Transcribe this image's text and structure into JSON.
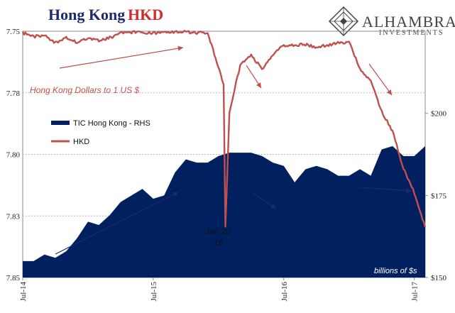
{
  "title_part1": "Hong Kong",
  "title_part2": "HKD",
  "logo": {
    "name": "ALHAMBRA",
    "sub": "INVESTMENTS"
  },
  "legend": {
    "tic_label": "TIC Hong Kong - RHS",
    "hkd_label": "HKD"
  },
  "annotations": {
    "hkd_note": "Hong Kong Dollars to 1 US $",
    "jan_line1": "Jan 20",
    "jan_line2": "'16",
    "units": "billions of $s"
  },
  "colors": {
    "hkd": "#c0504d",
    "tic": "#002060",
    "title_blue": "#1f2a6b",
    "title_red": "#d22b2b"
  },
  "chart_data": {
    "type": "line+area",
    "x_axis": {
      "ticks": [
        "Jul-14",
        "Jul-15",
        "Jul-16",
        "Jul-17"
      ],
      "range": [
        "2014-07",
        "2017-08"
      ]
    },
    "left_axis": {
      "inverted": true,
      "range": [
        7.75,
        7.85
      ],
      "ticks": [
        "7.75",
        "7.78",
        "7.80",
        "7.83",
        "7.85"
      ],
      "tick_values": [
        7.75,
        7.775,
        7.8,
        7.825,
        7.85
      ]
    },
    "right_axis": {
      "range": [
        150,
        225
      ],
      "ticks": [
        "$150",
        "$175",
        "$200"
      ],
      "tick_values": [
        150,
        175,
        200
      ]
    },
    "series": [
      {
        "name": "TIC Hong Kong - RHS",
        "axis": "right",
        "type": "area",
        "x": [
          "2014-07",
          "2014-08",
          "2014-09",
          "2014-10",
          "2014-11",
          "2014-12",
          "2015-01",
          "2015-02",
          "2015-03",
          "2015-04",
          "2015-05",
          "2015-06",
          "2015-07",
          "2015-08",
          "2015-09",
          "2015-10",
          "2015-11",
          "2015-12",
          "2016-01",
          "2016-02",
          "2016-03",
          "2016-04",
          "2016-05",
          "2016-06",
          "2016-07",
          "2016-08",
          "2016-09",
          "2016-10",
          "2016-11",
          "2016-12",
          "2017-01",
          "2017-02",
          "2017-03",
          "2017-04",
          "2017-05",
          "2017-06",
          "2017-07",
          "2017-08"
        ],
        "values": [
          155,
          155,
          157,
          156,
          158,
          162,
          167,
          166,
          169,
          173,
          175,
          177,
          174,
          175,
          182,
          186,
          185,
          185,
          187,
          188,
          188,
          188,
          187,
          185,
          184,
          179,
          183,
          184,
          183,
          181,
          181,
          183,
          181,
          189,
          190,
          187,
          187,
          190
        ]
      },
      {
        "name": "HKD",
        "axis": "left",
        "type": "line",
        "x": [
          "2014-07",
          "2014-08",
          "2014-09",
          "2014-10",
          "2014-11",
          "2014-12",
          "2015-01",
          "2015-02",
          "2015-03",
          "2015-04",
          "2015-05",
          "2015-06",
          "2015-07",
          "2015-08",
          "2015-09",
          "2015-10",
          "2015-11",
          "2015-12",
          "2016-01-15",
          "2016-01-20",
          "2016-02",
          "2016-03",
          "2016-04",
          "2016-05",
          "2016-06",
          "2016-07",
          "2016-08",
          "2016-09",
          "2016-10",
          "2016-11",
          "2016-12",
          "2017-01",
          "2017-02",
          "2017-03",
          "2017-04",
          "2017-05",
          "2017-06",
          "2017-07",
          "2017-08"
        ],
        "values": [
          7.7505,
          7.752,
          7.7515,
          7.7545,
          7.7525,
          7.7545,
          7.7525,
          7.7535,
          7.7525,
          7.7505,
          7.7502,
          7.7503,
          7.7505,
          7.7502,
          7.7501,
          7.75,
          7.7505,
          7.7503,
          7.771,
          7.8295,
          7.7825,
          7.7635,
          7.7595,
          7.7652,
          7.7596,
          7.7555,
          7.7555,
          7.7552,
          7.7562,
          7.7555,
          7.7545,
          7.7542,
          7.7652,
          7.7702,
          7.7825,
          7.7905,
          7.8055,
          7.8155,
          7.8295
        ]
      }
    ]
  }
}
